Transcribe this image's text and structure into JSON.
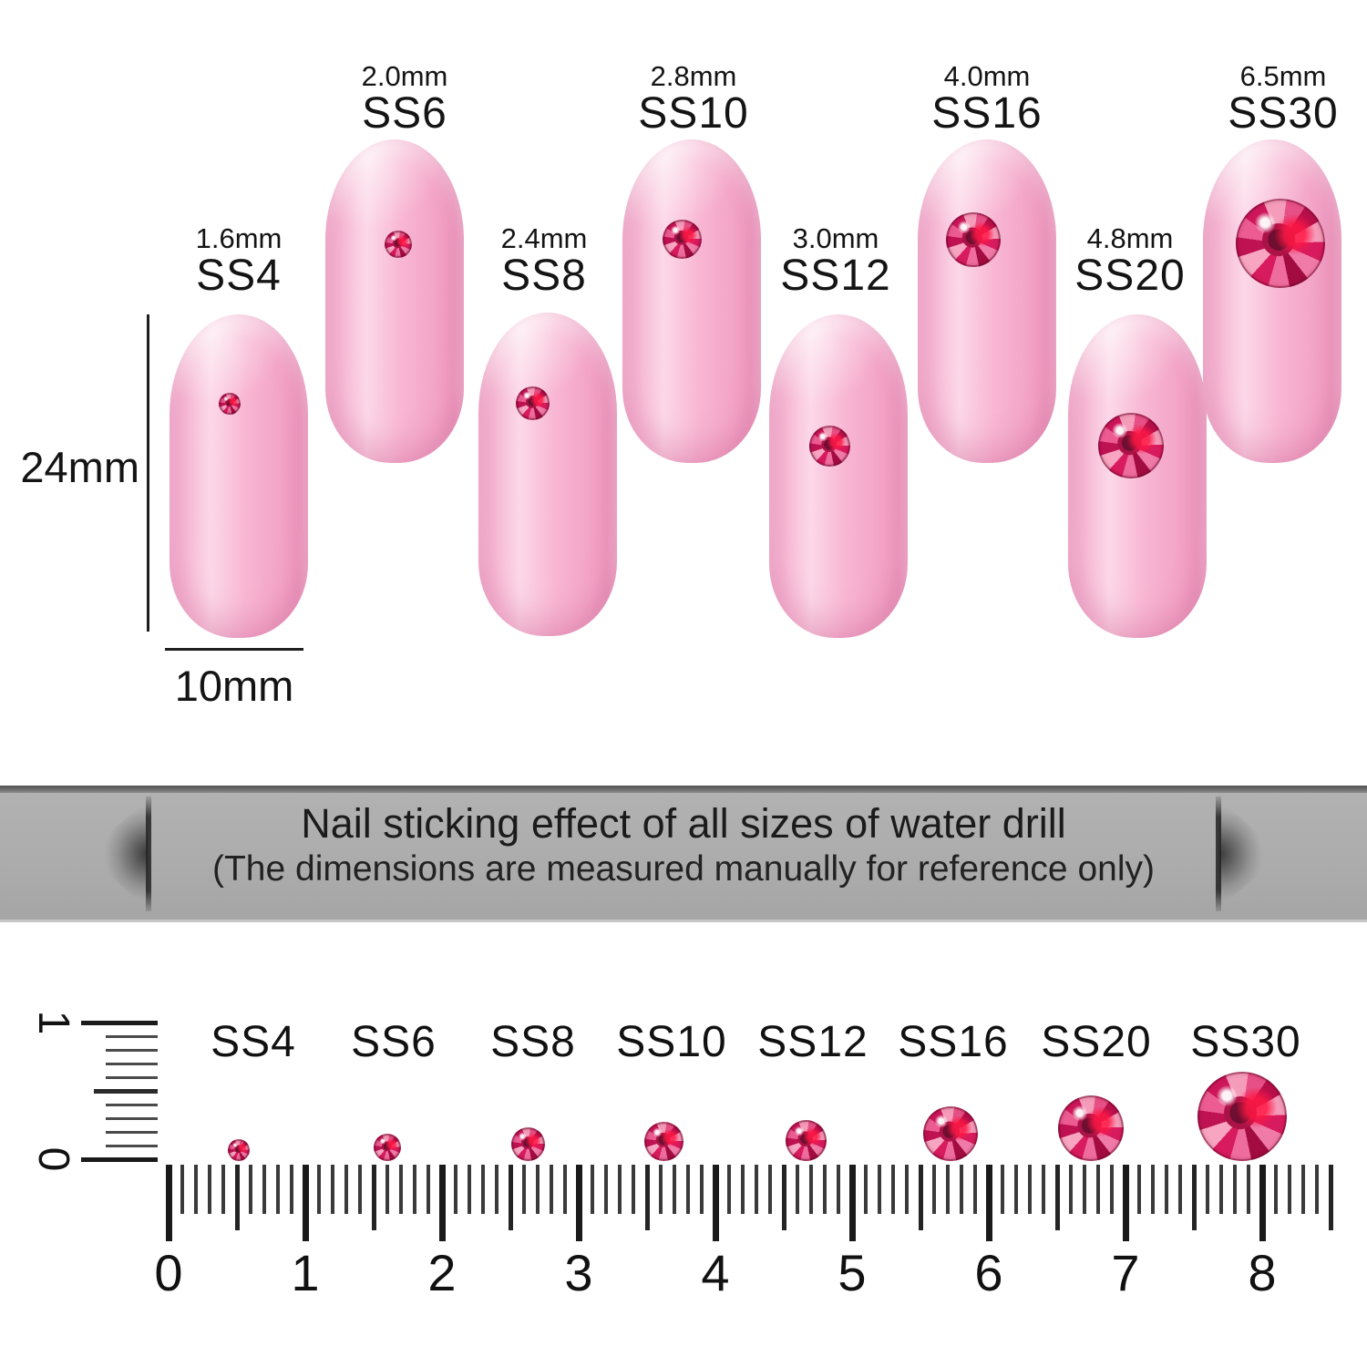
{
  "size_chart": {
    "nails": [
      {
        "mm_label": "1.6mm",
        "ss_label": "SS4",
        "size_mm": 1.6
      },
      {
        "mm_label": "2.0mm",
        "ss_label": "SS6",
        "size_mm": 2.0
      },
      {
        "mm_label": "2.4mm",
        "ss_label": "SS8",
        "size_mm": 2.4
      },
      {
        "mm_label": "2.8mm",
        "ss_label": "SS10",
        "size_mm": 2.8
      },
      {
        "mm_label": "3.0mm",
        "ss_label": "SS12",
        "size_mm": 3.0
      },
      {
        "mm_label": "4.0mm",
        "ss_label": "SS16",
        "size_mm": 4.0
      },
      {
        "mm_label": "4.8mm",
        "ss_label": "SS20",
        "size_mm": 4.8
      },
      {
        "mm_label": "6.5mm",
        "ss_label": "SS30",
        "size_mm": 6.5
      }
    ],
    "nail_height_label": "24mm",
    "nail_width_label": "10mm"
  },
  "banner": {
    "title": "Nail sticking effect of all sizes of water drill",
    "subtitle": "(The dimensions are measured manually for reference only)"
  },
  "ruler_section": {
    "labels": [
      "SS4",
      "SS6",
      "SS8",
      "SS10",
      "SS12",
      "SS16",
      "SS20",
      "SS30"
    ],
    "numbers": [
      "0",
      "1",
      "2",
      "3",
      "4",
      "5",
      "6",
      "7",
      "8"
    ],
    "unit_cm_per_major": 1,
    "vertical_top": "1",
    "vertical_bottom": "0"
  },
  "colors": {
    "nail_pink": "#f8b6d3",
    "gem_rose": "#d81b5e",
    "banner_gray": "#ababab",
    "text": "#161616"
  }
}
